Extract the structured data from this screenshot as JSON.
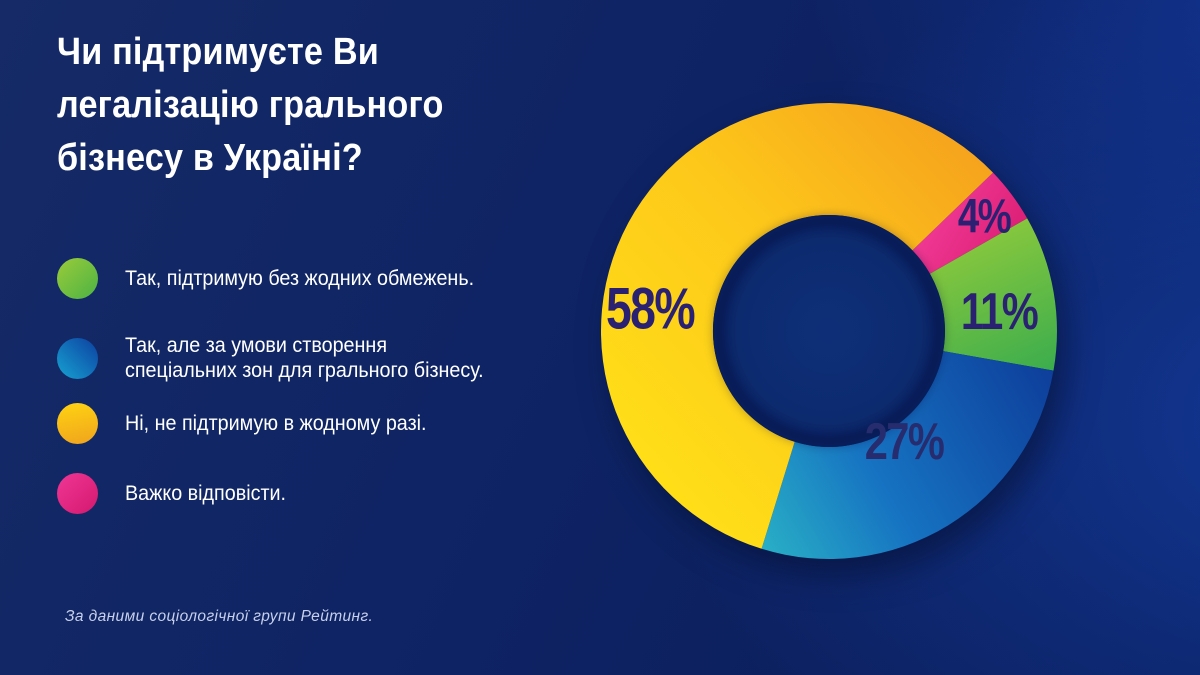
{
  "title": {
    "line1": "Чи підтримуєте Ви",
    "line2": "легалізацію грального",
    "line3": "бізнесу в Україні?"
  },
  "legend": {
    "items": [
      {
        "id": "green",
        "label": "Так, підтримую без жодних обмежень.",
        "color_from": "#9bcb3a",
        "color_to": "#4cb344",
        "angle": 135
      },
      {
        "id": "blue",
        "line1": "Так, але за умови створення",
        "line2": "спеціальних зон для грального бізнесу.",
        "color_from": "#17a3d2",
        "color_to": "#0c3fa0",
        "angle": 45
      },
      {
        "id": "yellow",
        "label": "Ні, не підтримую в жодному разі.",
        "color_from": "#ffd312",
        "color_to": "#f0a41d",
        "angle": 170
      },
      {
        "id": "pink",
        "label": "Важко відповісти.",
        "color_from": "#ef3794",
        "color_to": "#d4186f",
        "angle": 135
      }
    ]
  },
  "chart_data": {
    "type": "donut",
    "title": "Чи підтримуєте Ви легалізацію грального бізнесу в Україні?",
    "categories": [
      "Так, підтримую без жодних обмежень.",
      "Так, але за умови створення спеціальних зон для грального бізнесу.",
      "Ні, не підтримую в жодному разі.",
      "Важко відповісти."
    ],
    "values": [
      11,
      27,
      58,
      4
    ],
    "unit": "%",
    "start_angle_deg": 46,
    "segments": [
      {
        "id": "pink",
        "label": "Важко відповісти.",
        "value": 4,
        "pct": "4%",
        "color": "#e8258d"
      },
      {
        "id": "green",
        "label": "Так, підтримую без жодних обмежень.",
        "value": 11,
        "pct": "11%",
        "color": "#55b845"
      },
      {
        "id": "blue",
        "label": "Так, але за умови створення спеціальних зон для грального бізнесу.",
        "value": 27,
        "pct": "27%",
        "color": "#1a6fc0"
      },
      {
        "id": "yellow",
        "label": "Ні, не підтримую в жодному разі.",
        "value": 58,
        "pct": "58%",
        "color": "#fdc61a"
      }
    ],
    "label_color": "#2b2173",
    "legend_position": "left",
    "grid": false
  },
  "footer": {
    "text": "За даними соціологічної групи Рейтинг."
  }
}
